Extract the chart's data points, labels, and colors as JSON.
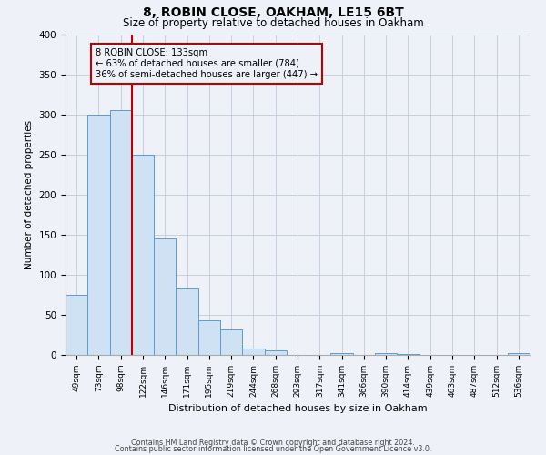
{
  "title": "8, ROBIN CLOSE, OAKHAM, LE15 6BT",
  "subtitle": "Size of property relative to detached houses in Oakham",
  "xlabel": "Distribution of detached houses by size in Oakham",
  "ylabel": "Number of detached properties",
  "bin_labels": [
    "49sqm",
    "73sqm",
    "98sqm",
    "122sqm",
    "146sqm",
    "171sqm",
    "195sqm",
    "219sqm",
    "244sqm",
    "268sqm",
    "293sqm",
    "317sqm",
    "341sqm",
    "366sqm",
    "390sqm",
    "414sqm",
    "439sqm",
    "463sqm",
    "487sqm",
    "512sqm",
    "536sqm"
  ],
  "bar_values": [
    75,
    300,
    305,
    250,
    145,
    83,
    43,
    32,
    8,
    6,
    0,
    0,
    2,
    0,
    2,
    1,
    0,
    0,
    0,
    0,
    2
  ],
  "bar_color": "#cfe2f3",
  "bar_edge_color": "#5b9bd5",
  "vline_x": 3.0,
  "vline_color": "#c00000",
  "annotation_line1": "8 ROBIN CLOSE: 133sqm",
  "annotation_line2": "← 63% of detached houses are smaller (784)",
  "annotation_line3": "36% of semi-detached houses are larger (447) →",
  "annotation_box_color": "#c00000",
  "ylim": [
    0,
    400
  ],
  "yticks": [
    0,
    50,
    100,
    150,
    200,
    250,
    300,
    350,
    400
  ],
  "footer_line1": "Contains HM Land Registry data © Crown copyright and database right 2024.",
  "footer_line2": "Contains public sector information licensed under the Open Government Licence v3.0.",
  "background_color": "#eef2f8",
  "grid_color": "#c8d0e0"
}
